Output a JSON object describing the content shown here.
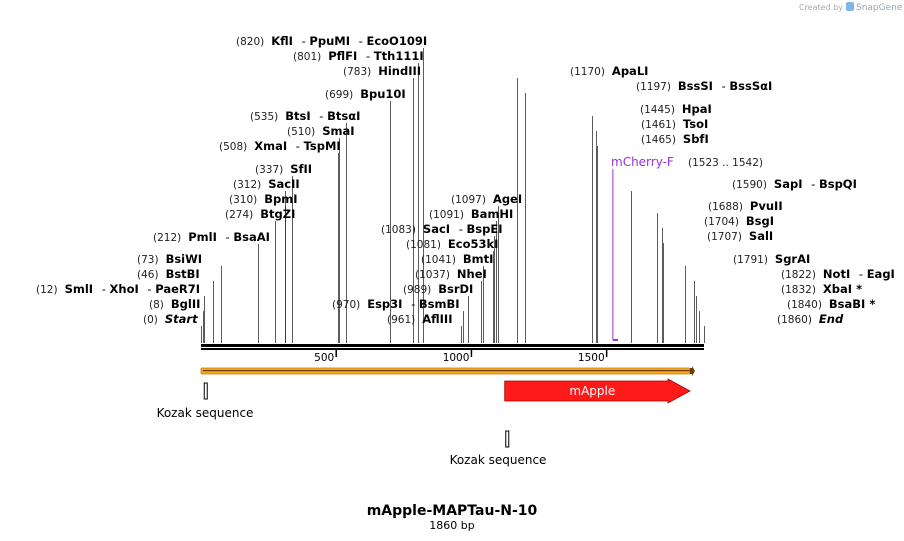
{
  "credit": {
    "prefix": "Created by",
    "brand": "SnapGene"
  },
  "map": {
    "title": "mApple-MAPTau-N-10",
    "length_label": "1860 bp",
    "length_bp": 1860
  },
  "ruler": {
    "ticks": [
      "500",
      "1000",
      "1500"
    ]
  },
  "sites": [
    {
      "pos": "(820)",
      "names": [
        "KflI",
        "PpuMI",
        "EcoO109I"
      ],
      "bp": 820
    },
    {
      "pos": "(801)",
      "names": [
        "PflFI",
        "Tth111I"
      ],
      "bp": 801
    },
    {
      "pos": "(783)",
      "names": [
        "HindIII"
      ],
      "bp": 783
    },
    {
      "pos": "(699)",
      "names": [
        "Bpu10I"
      ],
      "bp": 699
    },
    {
      "pos": "(535)",
      "names": [
        "BtsI",
        "BtsαI"
      ],
      "bp": 535
    },
    {
      "pos": "(510)",
      "names": [
        "SmaI"
      ],
      "bp": 510
    },
    {
      "pos": "(508)",
      "names": [
        "XmaI",
        "TspMI"
      ],
      "bp": 508
    },
    {
      "pos": "(337)",
      "names": [
        "SfII"
      ],
      "bp": 337
    },
    {
      "pos": "(312)",
      "names": [
        "SacII"
      ],
      "bp": 312
    },
    {
      "pos": "(310)",
      "names": [
        "BpmI"
      ],
      "bp": 310
    },
    {
      "pos": "(274)",
      "names": [
        "BtgZI"
      ],
      "bp": 274
    },
    {
      "pos": "(212)",
      "names": [
        "PmlI",
        "BsaAI"
      ],
      "bp": 212
    },
    {
      "pos": "(73)",
      "names": [
        "BsiWI"
      ],
      "bp": 73
    },
    {
      "pos": "(46)",
      "names": [
        "BstBI"
      ],
      "bp": 46
    },
    {
      "pos": "(12)",
      "names": [
        "SmlI",
        "XhoI",
        "PaeR7I"
      ],
      "bp": 12
    },
    {
      "pos": "(8)",
      "names": [
        "BglII"
      ],
      "bp": 8
    },
    {
      "pos": "(0)",
      "names": [
        "Start"
      ],
      "bp": 0,
      "italic": true
    },
    {
      "pos": "(1097)",
      "names": [
        "AgeI"
      ],
      "bp": 1097
    },
    {
      "pos": "(1091)",
      "names": [
        "BamHI"
      ],
      "bp": 1091
    },
    {
      "pos": "(1083)",
      "names": [
        "SacI",
        "BspEI"
      ],
      "bp": 1083
    },
    {
      "pos": "(1081)",
      "names": [
        "Eco53kI"
      ],
      "bp": 1081
    },
    {
      "pos": "(1041)",
      "names": [
        "BmtI"
      ],
      "bp": 1041
    },
    {
      "pos": "(1037)",
      "names": [
        "NheI"
      ],
      "bp": 1037
    },
    {
      "pos": "(989)",
      "names": [
        "BsrDI"
      ],
      "bp": 989
    },
    {
      "pos": "(970)",
      "names": [
        "Esp3I",
        "BsmBI"
      ],
      "bp": 970
    },
    {
      "pos": "(961)",
      "names": [
        "AflIII"
      ],
      "bp": 961
    },
    {
      "pos": "(1170)",
      "names": [
        "ApaLI"
      ],
      "bp": 1170
    },
    {
      "pos": "(1197)",
      "names": [
        "BssSI",
        "BssSαI"
      ],
      "bp": 1197
    },
    {
      "pos": "(1445)",
      "names": [
        "HpaI"
      ],
      "bp": 1445
    },
    {
      "pos": "(1461)",
      "names": [
        "TsoI"
      ],
      "bp": 1461
    },
    {
      "pos": "(1465)",
      "names": [
        "SbfI"
      ],
      "bp": 1465
    },
    {
      "pos": "(1590)",
      "names": [
        "SapI",
        "BspQI"
      ],
      "bp": 1590
    },
    {
      "pos": "(1688)",
      "names": [
        "PvuII"
      ],
      "bp": 1688
    },
    {
      "pos": "(1704)",
      "names": [
        "BsgI"
      ],
      "bp": 1704
    },
    {
      "pos": "(1707)",
      "names": [
        "SalI"
      ],
      "bp": 1707
    },
    {
      "pos": "(1791)",
      "names": [
        "SgrAI"
      ],
      "bp": 1791
    },
    {
      "pos": "(1822)",
      "names": [
        "NotI",
        "EagI"
      ],
      "bp": 1822
    },
    {
      "pos": "(1832)",
      "names": [
        "XbaI *"
      ],
      "bp": 1832
    },
    {
      "pos": "(1840)",
      "names": [
        "BsaBI *"
      ],
      "bp": 1840
    },
    {
      "pos": "(1860)",
      "names": [
        "End"
      ],
      "bp": 1860,
      "italic": true
    }
  ],
  "primer": {
    "name": "mCherry-F",
    "range": "(1523 .. 1542)",
    "color": "#9b30d9",
    "start_bp": 1523,
    "end_bp": 1542
  },
  "features": {
    "mapple": {
      "label": "mApple",
      "color": "#ff1a1a",
      "start_bp": 1123,
      "end_bp": 1860
    },
    "orange_bar": {
      "color": "#f5a623",
      "start_bp": 0,
      "end_bp": 1860
    },
    "kozak1": {
      "label": "Kozak sequence",
      "bp": 12
    },
    "kozak2": {
      "label": "Kozak sequence",
      "bp": 1127
    }
  }
}
